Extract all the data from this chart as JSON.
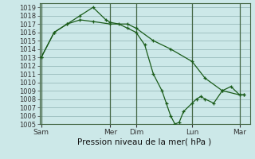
{
  "bg_color": "#cce8e8",
  "grid_color": "#99bbbb",
  "line_color": "#1a5c1a",
  "ylabel_text": "Pression niveau de la mer( hPa )",
  "ylim": [
    1005,
    1019.5
  ],
  "yticks": [
    1005,
    1006,
    1007,
    1008,
    1009,
    1010,
    1011,
    1012,
    1013,
    1014,
    1015,
    1016,
    1017,
    1018,
    1019
  ],
  "xtick_labels": [
    "Sam",
    "Mer",
    "Dim",
    "Lun",
    "Mar"
  ],
  "xtick_positions": [
    0,
    2.0,
    2.75,
    4.375,
    5.75
  ],
  "vline_positions": [
    0,
    2.0,
    2.75,
    4.375,
    5.75
  ],
  "series1_x": [
    0.0,
    0.375,
    0.75,
    1.125,
    1.5,
    1.875,
    2.0,
    2.25,
    2.5,
    2.75,
    3.0,
    3.25,
    3.5,
    3.625,
    3.75,
    3.875,
    4.0,
    4.125,
    4.375,
    4.5,
    4.625,
    4.75,
    5.0,
    5.25,
    5.5,
    5.75,
    5.875
  ],
  "series1_y": [
    1013,
    1016,
    1017,
    1018,
    1019,
    1017.5,
    1017.2,
    1017,
    1016.5,
    1016,
    1014.5,
    1011,
    1009,
    1007.5,
    1006,
    1005,
    1005.2,
    1006.5,
    1007.5,
    1008,
    1008.3,
    1008,
    1007.5,
    1009,
    1009.5,
    1008.5,
    1008.5
  ],
  "series2_x": [
    0.0,
    0.375,
    0.75,
    1.125,
    1.5,
    2.0,
    2.5,
    2.75,
    3.25,
    3.75,
    4.375,
    4.75,
    5.25,
    5.75,
    5.875
  ],
  "series2_y": [
    1013,
    1016,
    1017,
    1017.5,
    1017.3,
    1017,
    1017,
    1016.5,
    1015,
    1014,
    1012.5,
    1010.5,
    1009,
    1008.5,
    1008.5
  ],
  "fontsize_ylabel": 7.5,
  "fontsize_xtick": 6.5,
  "fontsize_ytick": 6.0
}
